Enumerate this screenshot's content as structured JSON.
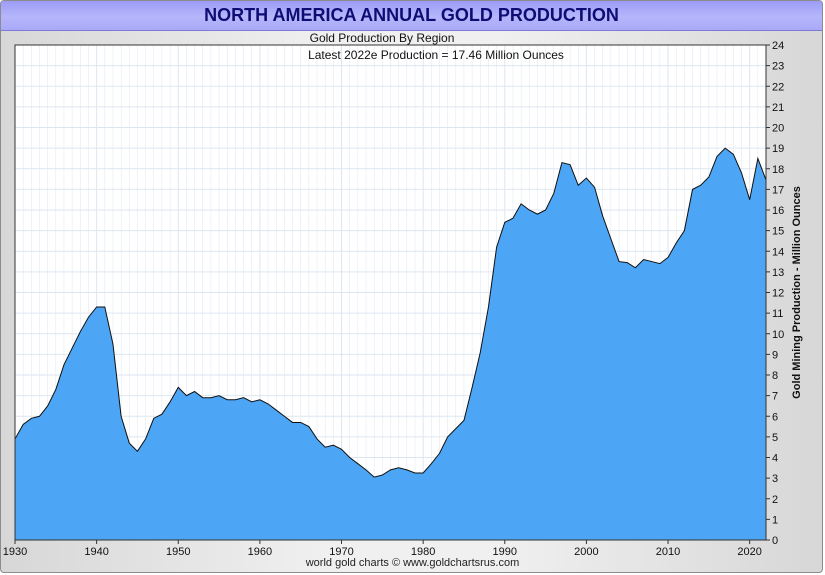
{
  "title": "NORTH AMERICA ANNUAL GOLD PRODUCTION",
  "footer": "world gold charts © www.goldchartsrus.com",
  "colors": {
    "fill": "#4da6f5",
    "line": "#101010",
    "title_text": "#0d0d74",
    "title_bg": "#aaaaf8",
    "grid": "#dde6f0"
  },
  "chart_data": {
    "type": "area",
    "subtitle": "Gold Production By Region",
    "annotation": "Latest 2022e Production = 17.46 Million Ounces",
    "ylabel": "Gold Mining Production - Million Ounces",
    "xlabel": "",
    "xlim": [
      1930,
      2022
    ],
    "ylim": [
      0,
      24
    ],
    "x_ticks": [
      "1930",
      "1940",
      "1950",
      "1960",
      "1970",
      "1980",
      "1990",
      "2000",
      "2010",
      "2020"
    ],
    "y_ticks": [
      "0",
      "1",
      "2",
      "3",
      "4",
      "5",
      "6",
      "7",
      "8",
      "9",
      "10",
      "11",
      "12",
      "13",
      "14",
      "15",
      "16",
      "17",
      "18",
      "19",
      "20",
      "21",
      "22",
      "23",
      "24"
    ],
    "y_axis_side": "right",
    "grid": true,
    "series": [
      {
        "x": [
          1930,
          1931,
          1932,
          1933,
          1934,
          1935,
          1936,
          1937,
          1938,
          1939,
          1940,
          1941,
          1942,
          1943,
          1944,
          1945,
          1946,
          1947,
          1948,
          1949,
          1950,
          1951,
          1952,
          1953,
          1954,
          1955,
          1956,
          1957,
          1958,
          1959,
          1960,
          1961,
          1962,
          1963,
          1964,
          1965,
          1966,
          1967,
          1968,
          1969,
          1970,
          1971,
          1972,
          1973,
          1974,
          1975,
          1976,
          1977,
          1978,
          1979,
          1980,
          1981,
          1982,
          1983,
          1984,
          1985,
          1986,
          1987,
          1988,
          1989,
          1990,
          1991,
          1992,
          1993,
          1994,
          1995,
          1996,
          1997,
          1998,
          1999,
          2000,
          2001,
          2002,
          2003,
          2004,
          2005,
          2006,
          2007,
          2008,
          2009,
          2010,
          2011,
          2012,
          2013,
          2014,
          2015,
          2016,
          2017,
          2018,
          2019,
          2020,
          2021,
          2022
        ],
        "values": [
          4.9,
          5.6,
          5.9,
          6.0,
          6.5,
          7.3,
          8.5,
          9.3,
          10.1,
          10.8,
          11.3,
          11.3,
          9.5,
          6.0,
          4.7,
          4.3,
          4.9,
          5.9,
          6.1,
          6.7,
          7.4,
          7.0,
          7.2,
          6.9,
          6.9,
          7.0,
          6.8,
          6.8,
          6.9,
          6.7,
          6.8,
          6.6,
          6.3,
          6.0,
          5.7,
          5.7,
          5.5,
          4.9,
          4.5,
          4.6,
          4.4,
          4.0,
          3.7,
          3.4,
          3.05,
          3.15,
          3.4,
          3.5,
          3.4,
          3.25,
          3.25,
          3.7,
          4.2,
          5.0,
          5.4,
          5.8,
          7.4,
          9.1,
          11.3,
          14.2,
          15.4,
          15.6,
          16.3,
          16.0,
          15.8,
          16.0,
          16.8,
          18.3,
          18.2,
          17.2,
          17.55,
          17.1,
          15.7,
          14.6,
          13.5,
          13.45,
          13.2,
          13.6,
          13.5,
          13.4,
          13.7,
          14.4,
          15.0,
          17.0,
          17.2,
          17.6,
          18.6,
          19.0,
          18.7,
          17.8,
          16.5,
          18.5,
          17.46
        ]
      }
    ]
  }
}
